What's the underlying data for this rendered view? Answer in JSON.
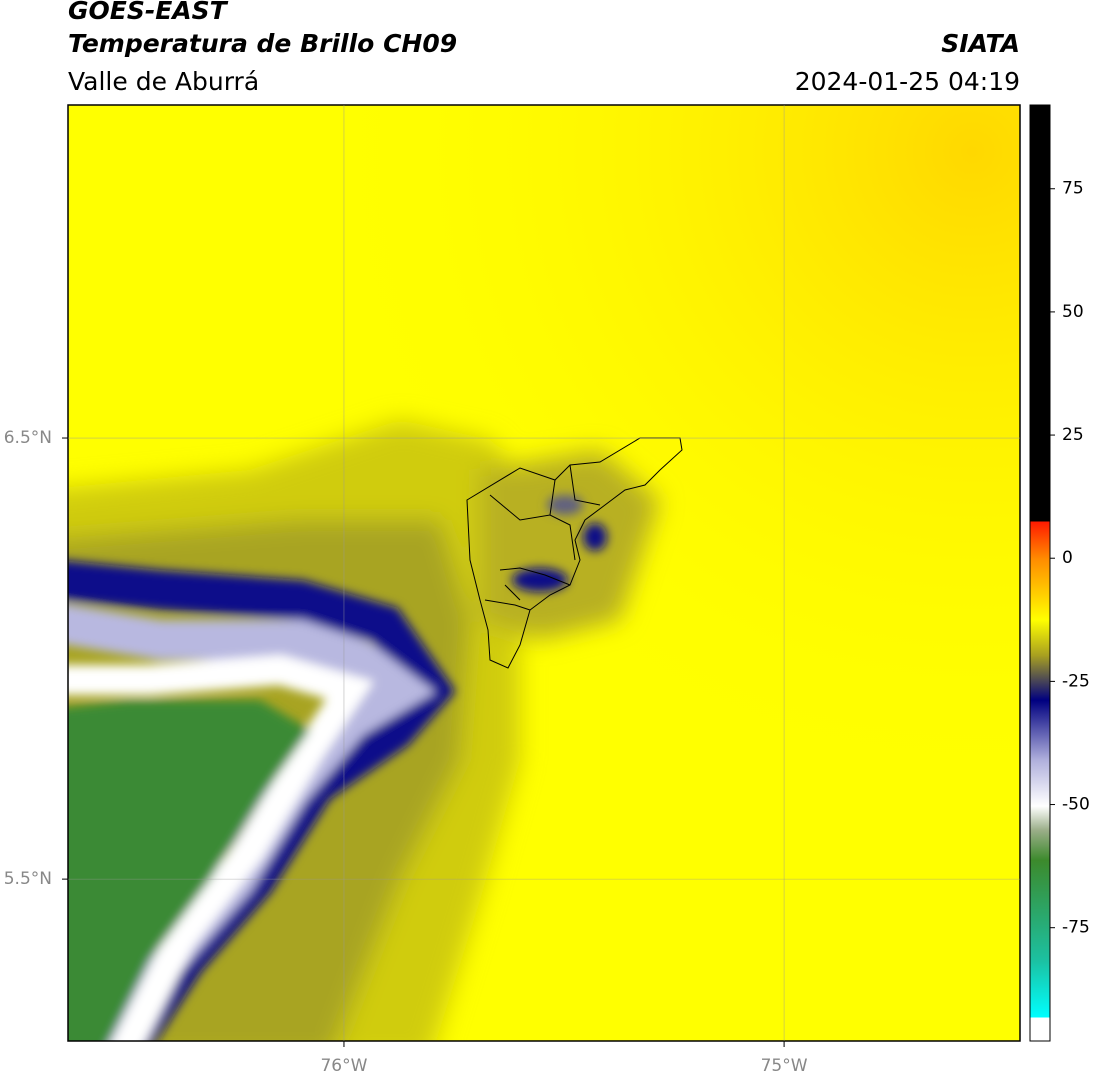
{
  "header": {
    "title": "GOES-EAST",
    "subtitle": "Temperatura de Brillo CH09",
    "region": "Valle de Aburrá",
    "source": "SIATA",
    "timestamp": "2024-01-25 04:19"
  },
  "map": {
    "xlim": [
      -76.627,
      -74.464
    ],
    "ylim": [
      5.133,
      7.255
    ],
    "xticks": [
      {
        "value": -76,
        "label": "76°W"
      },
      {
        "value": -75,
        "label": "75°W"
      }
    ],
    "yticks": [
      {
        "value": 6.5,
        "label": "6.5°N"
      },
      {
        "value": 5.5,
        "label": "5.5°N"
      }
    ],
    "grid": true
  },
  "colorbar": {
    "clim": [
      -98,
      92
    ],
    "ticks": [
      75,
      50,
      25,
      0,
      -25,
      -50,
      -75
    ]
  }
}
